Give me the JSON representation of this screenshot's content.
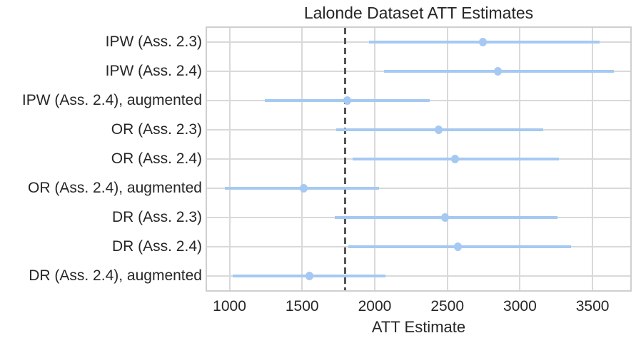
{
  "chart_data": {
    "type": "scatter",
    "variant": "forest-plot",
    "title": "Lalonde Dataset ATT Estimates",
    "xlabel": "ATT Estimate",
    "ylabel": "",
    "categories": [
      "IPW (Ass. 2.3)",
      "IPW (Ass. 2.4)",
      "IPW (Ass. 2.4), augmented",
      "OR (Ass. 2.3)",
      "OR (Ass. 2.4)",
      "OR (Ass. 2.4), augmented",
      "DR (Ass. 2.3)",
      "DR (Ass. 2.4)",
      "DR (Ass. 2.4), augmented"
    ],
    "series": [
      {
        "name": "ATT point estimate with confidence interval",
        "estimates": [
          2745,
          2850,
          1810,
          2440,
          2555,
          1510,
          2485,
          2575,
          1550
        ],
        "ci_lower": [
          1960,
          2065,
          1245,
          1735,
          1850,
          970,
          1725,
          1820,
          1020
        ],
        "ci_upper": [
          3550,
          3645,
          2380,
          3160,
          3270,
          2030,
          3260,
          3350,
          2075
        ]
      }
    ],
    "reference_line": {
      "x": 1794,
      "style": "dashed",
      "color": "#545454"
    },
    "x_ticks": [
      1000,
      1500,
      2000,
      2500,
      3000,
      3500
    ],
    "xlim": [
      845,
      3760
    ],
    "grid": true,
    "legend": false,
    "colors": {
      "point": "#a5c9f2",
      "error_bar": "#a5c9f2",
      "grid": "#d9d9d9",
      "border": "#cfcfcf",
      "text": "#262626"
    }
  }
}
